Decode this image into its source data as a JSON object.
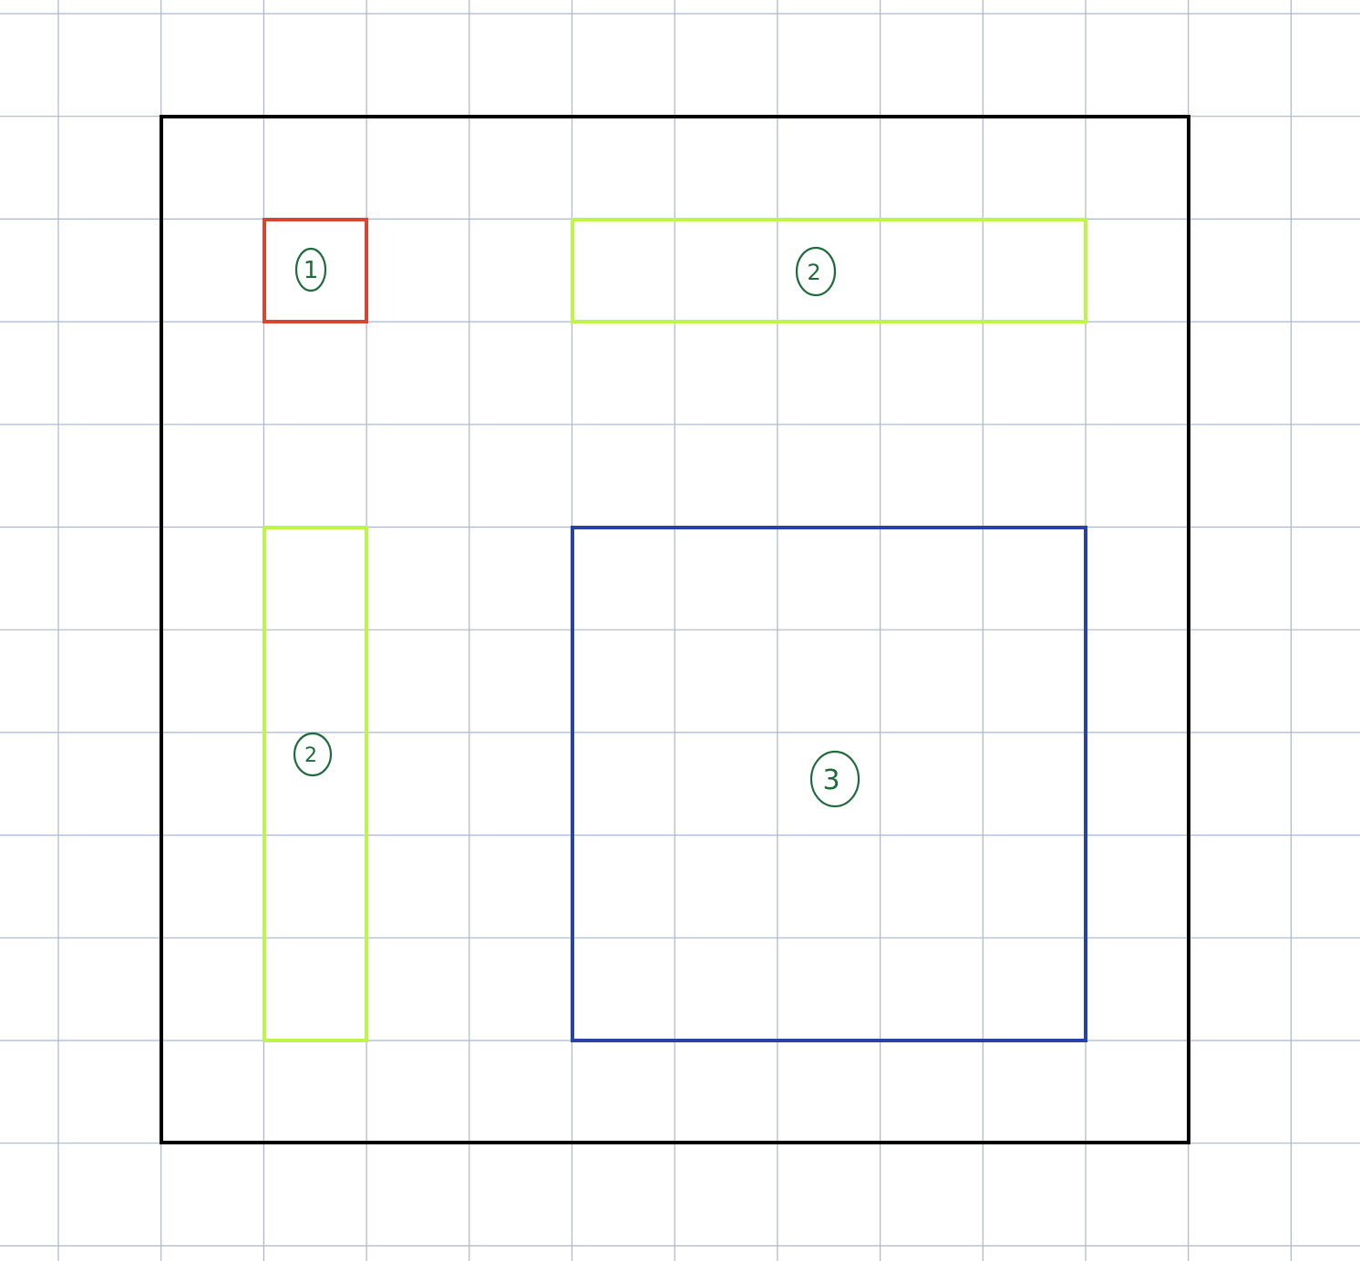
{
  "colors": {
    "background": "#ffffff",
    "grid": "#a9b7d0",
    "outer_border": "#000000",
    "red_box": "#d94535",
    "green_boxes": "#bdf54a",
    "blue_box": "#2743a6",
    "labels": "#1e6b3c"
  },
  "diagram": {
    "labels": {
      "red_box": "1",
      "green_box_top": "2",
      "green_box_left": "2",
      "blue_box": "3"
    }
  }
}
